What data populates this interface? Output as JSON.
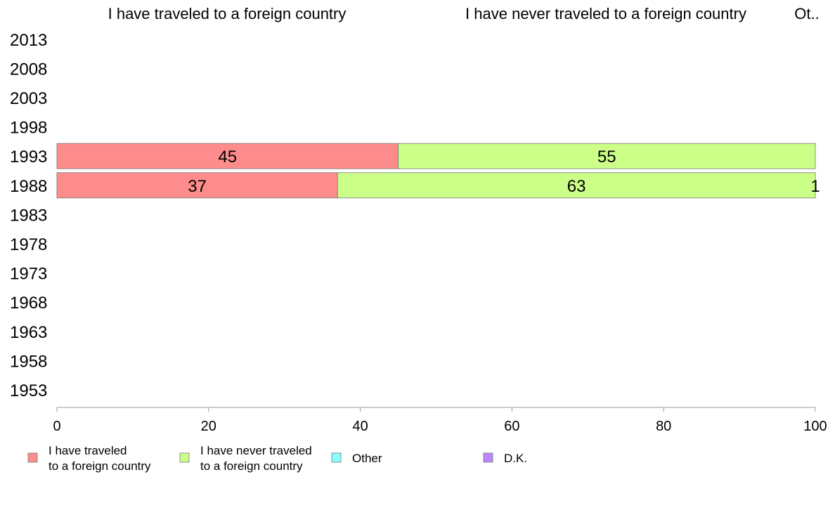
{
  "chart_data": {
    "type": "bar",
    "orientation": "horizontal",
    "stacked": true,
    "category_headers": [
      "I have traveled to a foreign country",
      "I have never traveled to a foreign country",
      "Ot.."
    ],
    "categories": [
      "2013",
      "2008",
      "2003",
      "1998",
      "1993",
      "1988",
      "1983",
      "1978",
      "1973",
      "1968",
      "1963",
      "1958",
      "1953"
    ],
    "series": [
      {
        "name": "I have traveled to a foreign country",
        "legend_lines": [
          "I have traveled",
          "to a foreign country"
        ],
        "color": "#ff8c8c",
        "values": [
          null,
          null,
          null,
          null,
          45,
          37,
          null,
          null,
          null,
          null,
          null,
          null,
          null
        ],
        "labels": [
          "",
          "",
          "",
          "",
          "45",
          "37",
          "",
          "",
          "",
          "",
          "",
          "",
          ""
        ]
      },
      {
        "name": "I have never traveled to a foreign country",
        "legend_lines": [
          "I have never traveled",
          "to a foreign country"
        ],
        "color": "#ccff88",
        "values": [
          null,
          null,
          null,
          null,
          55,
          63,
          null,
          null,
          null,
          null,
          null,
          null,
          null
        ],
        "labels": [
          "",
          "",
          "",
          "",
          "55",
          "63",
          "",
          "",
          "",
          "",
          "",
          "",
          ""
        ]
      },
      {
        "name": "Other",
        "legend_lines": [
          "Other"
        ],
        "color": "#88ffff",
        "values": [
          null,
          null,
          null,
          null,
          0.3,
          1,
          null,
          null,
          null,
          null,
          null,
          null,
          null
        ],
        "labels": [
          "",
          "",
          "",
          "",
          "",
          "1",
          "",
          "",
          "",
          "",
          "",
          "",
          ""
        ]
      },
      {
        "name": "D.K.",
        "legend_lines": [
          "D.K."
        ],
        "color": "#bb88ff",
        "values": [
          null,
          null,
          null,
          null,
          0,
          0,
          null,
          null,
          null,
          null,
          null,
          null,
          null
        ],
        "labels": [
          "",
          "",
          "",
          "",
          "",
          "",
          "",
          "",
          "",
          "",
          "",
          "",
          ""
        ]
      }
    ],
    "xlim": [
      0,
      100
    ],
    "xticks": [
      0,
      20,
      40,
      60,
      80,
      100
    ],
    "grid": false,
    "legend_position": "bottom"
  }
}
